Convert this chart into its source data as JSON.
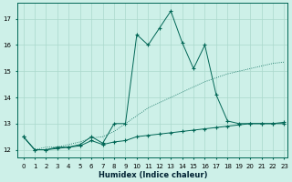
{
  "xlabel": "Humidex (Indice chaleur)",
  "background_color": "#cdf0e8",
  "grid_color": "#aad8cc",
  "line_color": "#006655",
  "xlim_min": -0.5,
  "xlim_max": 23.3,
  "ylim_min": 11.7,
  "ylim_max": 17.6,
  "yticks": [
    12,
    13,
    14,
    15,
    16,
    17
  ],
  "xticks": [
    0,
    1,
    2,
    3,
    4,
    5,
    6,
    7,
    8,
    9,
    10,
    11,
    12,
    13,
    14,
    15,
    16,
    17,
    18,
    19,
    20,
    21,
    22,
    23
  ],
  "curve_dotted_x": [
    0,
    1,
    2,
    3,
    4,
    5,
    6,
    7,
    8,
    9,
    10,
    11,
    12,
    13,
    14,
    15,
    16,
    17,
    18,
    19,
    20,
    21,
    22,
    23
  ],
  "curve_dotted_y": [
    12.5,
    12.0,
    12.1,
    12.1,
    12.2,
    12.3,
    12.45,
    12.5,
    12.7,
    13.0,
    13.3,
    13.6,
    13.8,
    14.0,
    14.2,
    14.4,
    14.6,
    14.75,
    14.9,
    15.0,
    15.1,
    15.2,
    15.3,
    15.35
  ],
  "curve_main_x": [
    0,
    1,
    2,
    3,
    4,
    5,
    6,
    7,
    8,
    9,
    10,
    11,
    12,
    13,
    14,
    15,
    16,
    17,
    18,
    19,
    20,
    21,
    22,
    23
  ],
  "curve_main_y": [
    12.5,
    12.0,
    12.0,
    12.1,
    12.1,
    12.2,
    12.5,
    12.25,
    13.0,
    13.0,
    16.4,
    16.0,
    16.65,
    17.3,
    16.1,
    15.1,
    16.0,
    14.1,
    13.1,
    13.0,
    13.0,
    13.0,
    13.0,
    13.0
  ],
  "curve_flat_x": [
    0,
    1,
    2,
    3,
    4,
    5,
    6,
    7,
    8,
    9,
    10,
    11,
    12,
    13,
    14,
    15,
    16,
    17,
    18,
    19,
    20,
    21,
    22,
    23
  ],
  "curve_flat_y": [
    12.5,
    12.0,
    12.0,
    12.05,
    12.1,
    12.15,
    12.35,
    12.2,
    12.3,
    12.35,
    12.5,
    12.55,
    12.6,
    12.65,
    12.7,
    12.75,
    12.8,
    12.85,
    12.9,
    12.95,
    13.0,
    13.0,
    13.0,
    13.05
  ]
}
